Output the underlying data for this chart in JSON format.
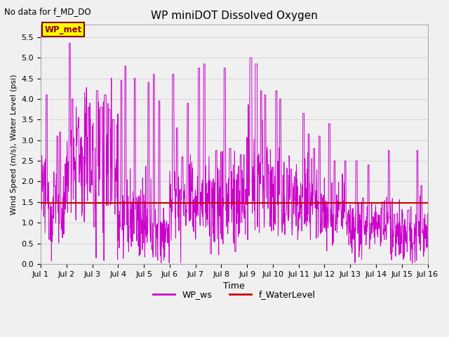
{
  "title": "WP miniDOT Dissolved Oxygen",
  "top_left_text": "No data for f_MD_DO",
  "ylabel": "Wind Speed (m/s), Water Level (psi)",
  "xlabel": "Time",
  "ylim": [
    0.0,
    5.8
  ],
  "yticks": [
    0.0,
    0.5,
    1.0,
    1.5,
    2.0,
    2.5,
    3.0,
    3.5,
    4.0,
    4.5,
    5.0,
    5.5
  ],
  "xtick_labels": [
    "Jul 1",
    "Jul 2",
    "Jul 3",
    "Jul 4",
    "Jul 5",
    "Jul 6",
    "Jul 7",
    "Jul 8",
    "Jul 9",
    "Jul 10",
    "Jul 11",
    "Jul 12",
    "Jul 13",
    "Jul 14",
    "Jul 15",
    "Jul 16"
  ],
  "annotation_text": "WP_met",
  "annotation_bg": "#ffff00",
  "annotation_border": "#8B0000",
  "annotation_text_color": "#8B0000",
  "wp_ws_color": "#cc00cc",
  "f_waterlevel_color": "#cc0000",
  "legend_labels": [
    "WP_ws",
    "f_WaterLevel"
  ],
  "water_level_value": 1.48,
  "background_color": "#f0f0f0",
  "figsize": [
    6.4,
    4.8
  ],
  "dpi": 100
}
